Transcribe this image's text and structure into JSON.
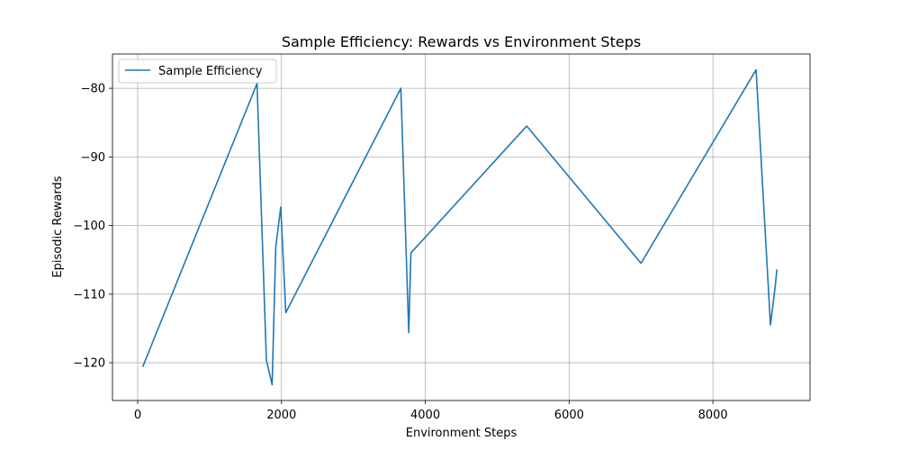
{
  "chart_data": {
    "type": "line",
    "title": "Sample Efficiency: Rewards vs Environment Steps",
    "xlabel": "Environment Steps",
    "ylabel": "Episodic Rewards",
    "xlim": [
      -350,
      9350
    ],
    "ylim": [
      -125.5,
      -75.0
    ],
    "xticks": [
      0,
      2000,
      4000,
      6000,
      8000
    ],
    "yticks": [
      -120,
      -110,
      -100,
      -90,
      -80
    ],
    "xtick_labels": [
      "0",
      "2000",
      "4000",
      "6000",
      "8000"
    ],
    "ytick_labels": [
      "−120",
      "−110",
      "−100",
      "−90",
      "−80"
    ],
    "grid": true,
    "legend_position": "top-left",
    "series": [
      {
        "name": "Sample Efficiency",
        "color": "#1f77b4",
        "x": [
          70,
          1660,
          1790,
          1870,
          1920,
          1990,
          2060,
          3660,
          3770,
          3800,
          5410,
          7000,
          8600,
          8800,
          8870,
          8890
        ],
        "y": [
          -120.6,
          -79.3,
          -119.6,
          -123.2,
          -103.2,
          -97.3,
          -112.7,
          -80.0,
          -115.6,
          -104.0,
          -85.5,
          -105.5,
          -77.3,
          -114.5,
          -108.5,
          -106.4
        ]
      }
    ]
  }
}
